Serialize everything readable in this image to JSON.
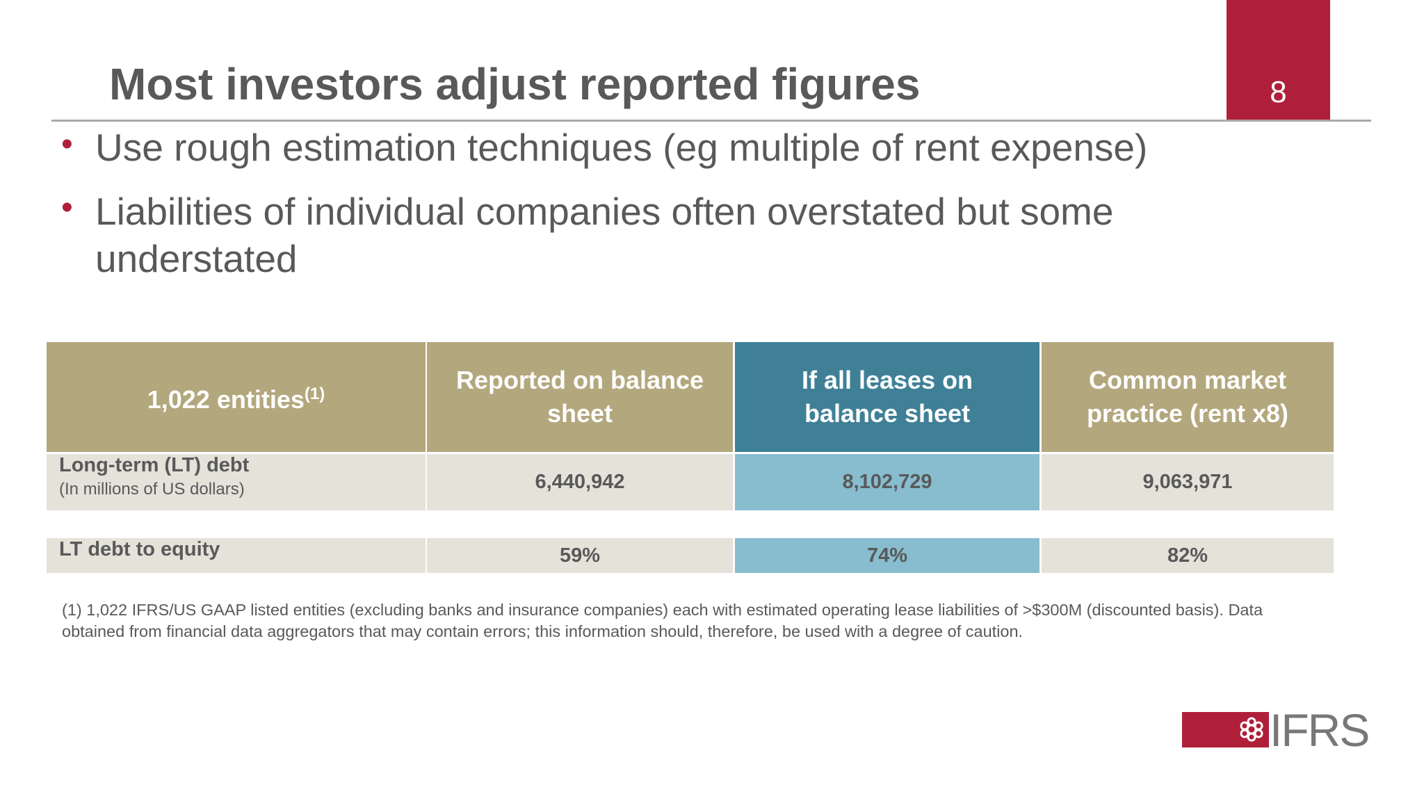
{
  "header": {
    "title": "Most investors adjust reported figures",
    "page_number": "8"
  },
  "bullets": [
    "Use rough estimation techniques (eg multiple of rent expense)",
    "Liabilities of individual companies often overstated but some understated"
  ],
  "table": {
    "header": {
      "label": "1,022 entities",
      "label_note": "(1)",
      "columns": [
        "Reported on balance sheet",
        "If all leases on balance sheet",
        "Common market practice (rent x8)"
      ]
    },
    "rows": [
      {
        "label": "Long-term (LT) debt",
        "sublabel": "(In millions of US dollars)",
        "cells": [
          "6,440,942",
          "8,102,729",
          "9,063,971"
        ]
      },
      {
        "label": "LT debt to equity",
        "cells": [
          "59%",
          "74%",
          "82%"
        ]
      }
    ]
  },
  "footnote": "(1) 1,022 IFRS/US GAAP listed entities (excluding banks and insurance companies) each with estimated operating lease liabilities of >$300M (discounted basis). Data obtained from financial data aggregators that may contain errors; this information should, therefore, be used with a degree of caution.",
  "logo": "IFRS"
}
